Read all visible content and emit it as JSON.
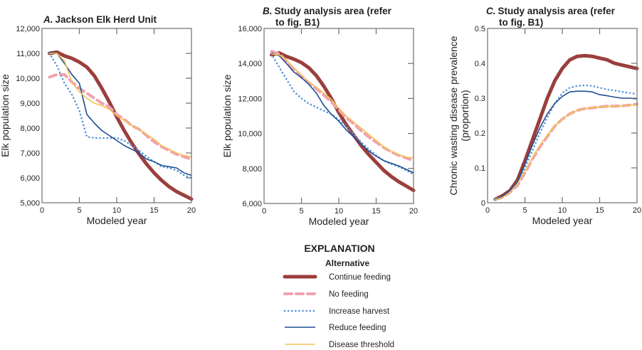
{
  "legend": {
    "heading": "EXPLANATION",
    "subheading": "Alternative"
  },
  "series_styles": [
    {
      "name": "Continue feeding",
      "color": "#9a3f3c",
      "style": "thick-solid"
    },
    {
      "name": "No feeding",
      "color": "#f0a3ad",
      "style": "dashed"
    },
    {
      "name": "Increase harvest",
      "color": "#5b96d6",
      "style": "dotted"
    },
    {
      "name": "Reduce feeding",
      "color": "#1f4f94",
      "style": "solid"
    },
    {
      "name": "Disease threshold",
      "color": "#f3c358",
      "style": "thin-solid"
    }
  ],
  "chart_data": [
    {
      "type": "line",
      "title_letter": "A.",
      "title_lines": [
        "Jackson Elk Herd Unit"
      ],
      "xlabel": "Modeled year",
      "ylabel_lines": [
        "Elk population size"
      ],
      "xlim": [
        0,
        20
      ],
      "ylim": [
        5000,
        12000
      ],
      "xticks": [
        0,
        5,
        10,
        15,
        20
      ],
      "yticks": [
        5000,
        6000,
        7000,
        8000,
        9000,
        10000,
        11000,
        12000
      ],
      "ytick_labels": [
        "5,000",
        "6,000",
        "7,000",
        "8,000",
        "9,000",
        "10,000",
        "11,000",
        "12,000"
      ],
      "x": [
        1,
        2,
        3,
        4,
        5,
        6,
        7,
        8,
        9,
        10,
        11,
        12,
        13,
        14,
        15,
        16,
        17,
        18,
        19,
        20
      ],
      "series": [
        {
          "name": "Continue feeding",
          "values": [
            11000,
            11050,
            10900,
            10800,
            10650,
            10450,
            10100,
            9600,
            9050,
            8450,
            7900,
            7400,
            6950,
            6550,
            6200,
            5900,
            5650,
            5450,
            5300,
            5150
          ]
        },
        {
          "name": "No feeding",
          "values": [
            10050,
            10150,
            10150,
            9850,
            9600,
            9400,
            9200,
            9000,
            8850,
            8550,
            8350,
            8100,
            7950,
            7700,
            7450,
            7250,
            7100,
            6950,
            6850,
            6750
          ]
        },
        {
          "name": "Increase harvest",
          "values": [
            11000,
            10500,
            9800,
            9350,
            8700,
            7650,
            7600,
            7600,
            7600,
            7600,
            7500,
            7300,
            7100,
            6850,
            6650,
            6450,
            6400,
            6300,
            6100,
            6000
          ]
        },
        {
          "name": "Reduce feeding",
          "values": [
            11050,
            11000,
            10600,
            10150,
            9800,
            8550,
            8200,
            7900,
            7700,
            7500,
            7300,
            7150,
            7000,
            6750,
            6650,
            6500,
            6450,
            6400,
            6200,
            6100
          ]
        },
        {
          "name": "Disease threshold",
          "values": [
            11000,
            11000,
            10700,
            9850,
            9450,
            9200,
            9000,
            8900,
            8750,
            8500,
            8300,
            8100,
            7950,
            7750,
            7550,
            7300,
            7150,
            7000,
            6900,
            6850
          ]
        }
      ]
    },
    {
      "type": "line",
      "title_letter": "B.",
      "title_lines": [
        "Study analysis area (refer",
        "to fig. B1)"
      ],
      "xlabel": "Modeled year",
      "ylabel_lines": [
        "Elk population size"
      ],
      "xlim": [
        0,
        20
      ],
      "ylim": [
        6000,
        16000
      ],
      "xticks": [
        0,
        5,
        10,
        15,
        20
      ],
      "yticks": [
        6000,
        8000,
        10000,
        12000,
        14000,
        16000
      ],
      "ytick_labels": [
        "6,000",
        "8,000",
        "10,000",
        "12,000",
        "14,000",
        "16,000"
      ],
      "x": [
        1,
        2,
        3,
        4,
        5,
        6,
        7,
        8,
        9,
        10,
        11,
        12,
        13,
        14,
        15,
        16,
        17,
        18,
        19,
        20
      ],
      "series": [
        {
          "name": "Continue feeding",
          "values": [
            14500,
            14600,
            14400,
            14250,
            14050,
            13750,
            13300,
            12700,
            12000,
            11200,
            10500,
            9900,
            9300,
            8800,
            8350,
            7900,
            7550,
            7250,
            7000,
            6750
          ]
        },
        {
          "name": "No feeding",
          "values": [
            14700,
            14550,
            14150,
            13650,
            13200,
            12900,
            12550,
            12200,
            11800,
            11350,
            10900,
            10550,
            10150,
            9800,
            9500,
            9200,
            8950,
            8750,
            8600,
            8450
          ]
        },
        {
          "name": "Increase harvest",
          "values": [
            14550,
            13800,
            13100,
            12400,
            12000,
            11700,
            11500,
            11300,
            11100,
            10800,
            10400,
            9950,
            9500,
            9100,
            8750,
            8450,
            8250,
            8100,
            7900,
            7650
          ]
        },
        {
          "name": "Reduce feeding",
          "values": [
            14600,
            14450,
            14000,
            13500,
            13200,
            12800,
            12300,
            11600,
            11100,
            10700,
            10200,
            9800,
            9400,
            9000,
            8700,
            8450,
            8300,
            8150,
            7950,
            7750
          ]
        },
        {
          "name": "Disease threshold",
          "values": [
            14550,
            14500,
            14200,
            13750,
            13350,
            12950,
            12650,
            12300,
            11950,
            11450,
            11000,
            10650,
            10300,
            9950,
            9600,
            9250,
            9000,
            8800,
            8650,
            8600
          ]
        }
      ]
    },
    {
      "type": "line",
      "title_letter": "C.",
      "title_lines": [
        "Study analysis area (refer",
        "to fig. B1)"
      ],
      "xlabel": "Modeled year",
      "ylabel_lines": [
        "Chronic wasting disease prevalence",
        "(proportion)"
      ],
      "xlim": [
        0,
        20
      ],
      "ylim": [
        0,
        0.5
      ],
      "xticks": [
        0,
        5,
        10,
        15,
        20
      ],
      "yticks": [
        0,
        0.1,
        0.2,
        0.3,
        0.4,
        0.5
      ],
      "ytick_labels": [
        "0",
        "0.1",
        "0.2",
        "0.3",
        "0.4",
        "0.5"
      ],
      "x": [
        1,
        2,
        3,
        4,
        5,
        6,
        7,
        8,
        9,
        10,
        11,
        12,
        13,
        14,
        15,
        16,
        17,
        18,
        19,
        20
      ],
      "series": [
        {
          "name": "Continue feeding",
          "values": [
            0.01,
            0.02,
            0.035,
            0.065,
            0.12,
            0.18,
            0.24,
            0.3,
            0.35,
            0.385,
            0.41,
            0.42,
            0.422,
            0.42,
            0.415,
            0.41,
            0.4,
            0.395,
            0.39,
            0.385
          ]
        },
        {
          "name": "No feeding",
          "values": [
            0.01,
            0.015,
            0.03,
            0.05,
            0.085,
            0.125,
            0.16,
            0.19,
            0.22,
            0.24,
            0.255,
            0.265,
            0.27,
            0.272,
            0.275,
            0.277,
            0.277,
            0.278,
            0.28,
            0.283
          ]
        },
        {
          "name": "Increase harvest",
          "values": [
            0.01,
            0.018,
            0.03,
            0.055,
            0.1,
            0.15,
            0.2,
            0.245,
            0.285,
            0.315,
            0.33,
            0.335,
            0.337,
            0.335,
            0.33,
            0.325,
            0.322,
            0.318,
            0.315,
            0.312
          ]
        },
        {
          "name": "Reduce feeding",
          "values": [
            0.01,
            0.018,
            0.035,
            0.06,
            0.11,
            0.165,
            0.215,
            0.255,
            0.285,
            0.305,
            0.318,
            0.32,
            0.32,
            0.318,
            0.31,
            0.307,
            0.303,
            0.3,
            0.3,
            0.298
          ]
        },
        {
          "name": "Disease threshold",
          "values": [
            0.008,
            0.015,
            0.03,
            0.055,
            0.09,
            0.13,
            0.165,
            0.195,
            0.22,
            0.24,
            0.255,
            0.265,
            0.27,
            0.272,
            0.275,
            0.276,
            0.277,
            0.278,
            0.279,
            0.28
          ]
        }
      ]
    }
  ]
}
